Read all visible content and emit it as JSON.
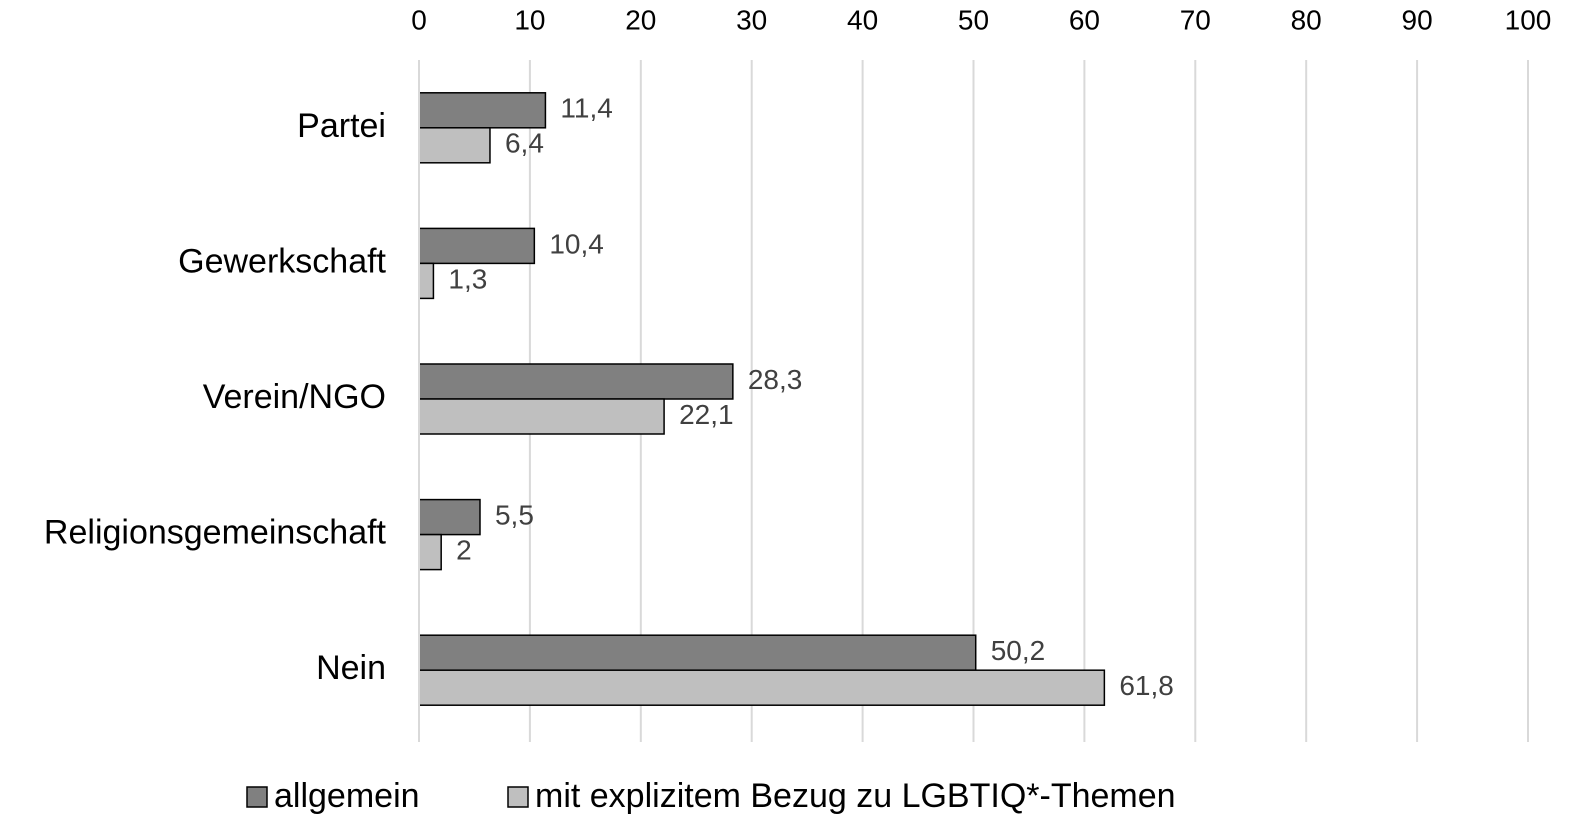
{
  "chart_data": {
    "type": "bar",
    "orientation": "horizontal",
    "categories": [
      "Partei",
      "Gewerkschaft",
      "Verein/NGO",
      "Religionsgemeinschaft",
      "Nein"
    ],
    "series": [
      {
        "name": "allgemein",
        "color": "#808080",
        "values": [
          11.4,
          10.4,
          28.3,
          5.5,
          50.2
        ],
        "value_labels": [
          "11,4",
          "10,4",
          "28,3",
          "5,5",
          "50,2"
        ]
      },
      {
        "name": "mit explizitem Bezug zu LGBTIQ*-Themen",
        "color": "#bfbfbf",
        "values": [
          6.4,
          1.3,
          22.1,
          2,
          61.8
        ],
        "value_labels": [
          "6,4",
          "1,3",
          "22,1",
          "2",
          "61,8"
        ]
      }
    ],
    "xlim": [
      0,
      100
    ],
    "xticks": [
      0,
      10,
      20,
      30,
      40,
      50,
      60,
      70,
      80,
      90,
      100
    ],
    "grid": true,
    "legend": "bottom"
  }
}
